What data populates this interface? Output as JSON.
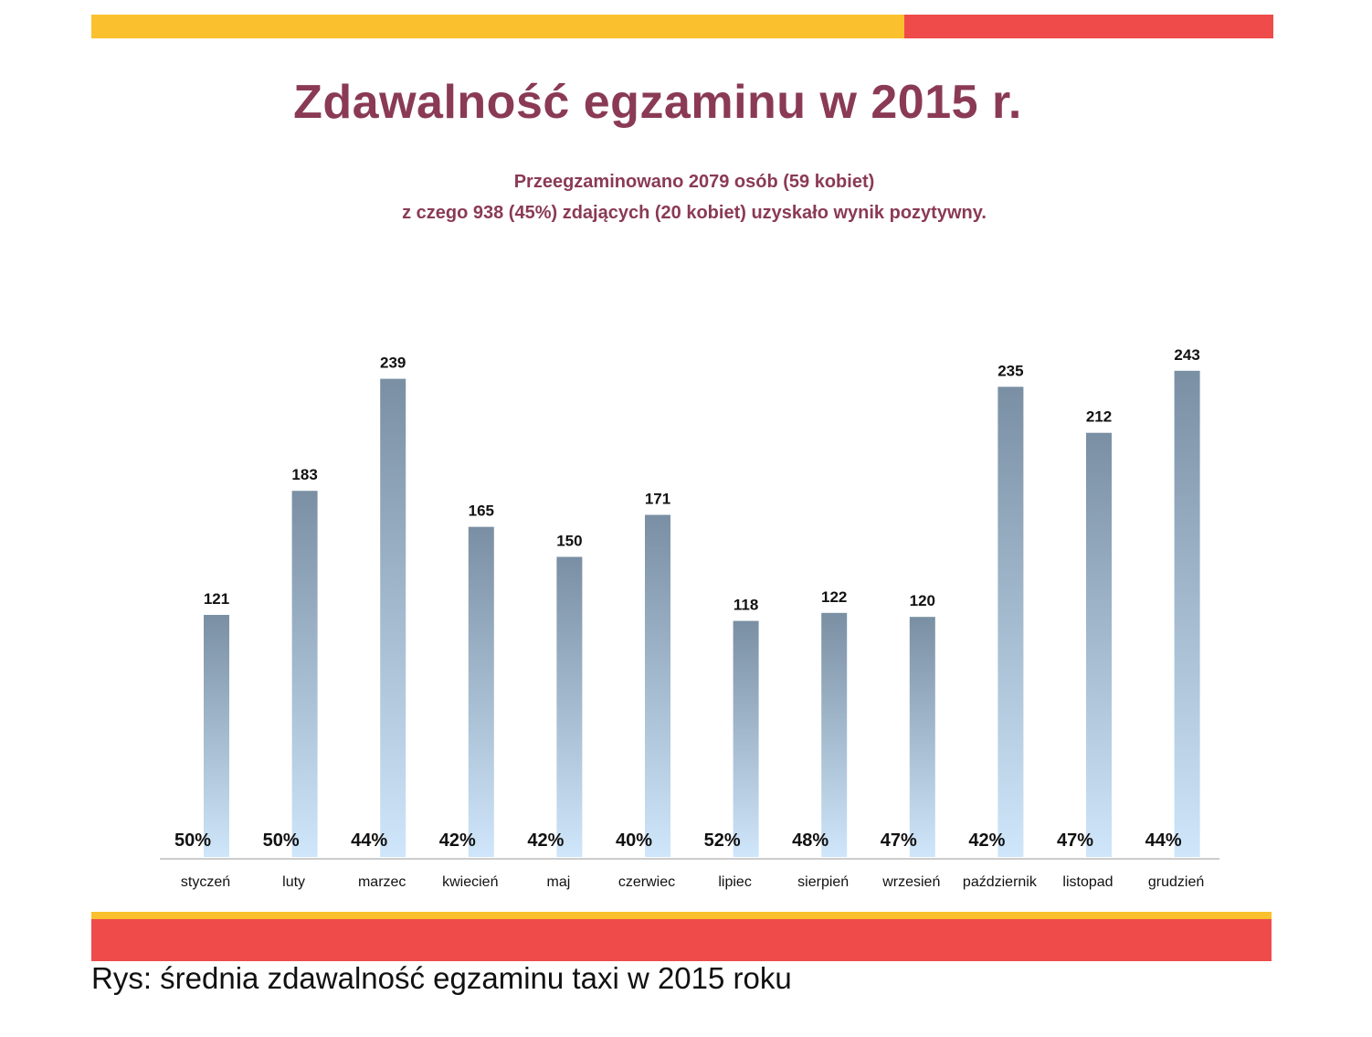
{
  "header": {
    "title": "Zdawalność egzaminu w 2015 r.",
    "subtitle_line1": "Przeegzaminowano 2079 osób (59 kobiet)",
    "subtitle_line2": "z czego 938 (45%) zdających (20 kobiet) uzyskało wynik pozytywny."
  },
  "caption": "Rys: średnia zdawalność egzaminu taxi w 2015 roku",
  "colors": {
    "title": "#8a3a55",
    "band_yellow": "#fbc02d",
    "band_red": "#ef4b4b",
    "bar_top": "#7a8fa3",
    "bar_bottom": "#cfe6fb"
  },
  "chart_data": {
    "type": "bar",
    "title": "",
    "xlabel": "",
    "ylabel": "",
    "ylim": [
      0,
      260
    ],
    "grid": false,
    "legend": "none",
    "categories": [
      "styczeń",
      "luty",
      "marzec",
      "kwiecień",
      "maj",
      "czerwiec",
      "lipiec",
      "sierpień",
      "wrzesień",
      "październik",
      "listopad",
      "grudzień"
    ],
    "values": [
      121,
      183,
      239,
      165,
      150,
      171,
      118,
      122,
      120,
      235,
      212,
      243
    ],
    "pass_rates": [
      "50%",
      "50%",
      "44%",
      "42%",
      "42%",
      "40%",
      "52%",
      "48%",
      "47%",
      "42%",
      "47%",
      "44%"
    ]
  }
}
